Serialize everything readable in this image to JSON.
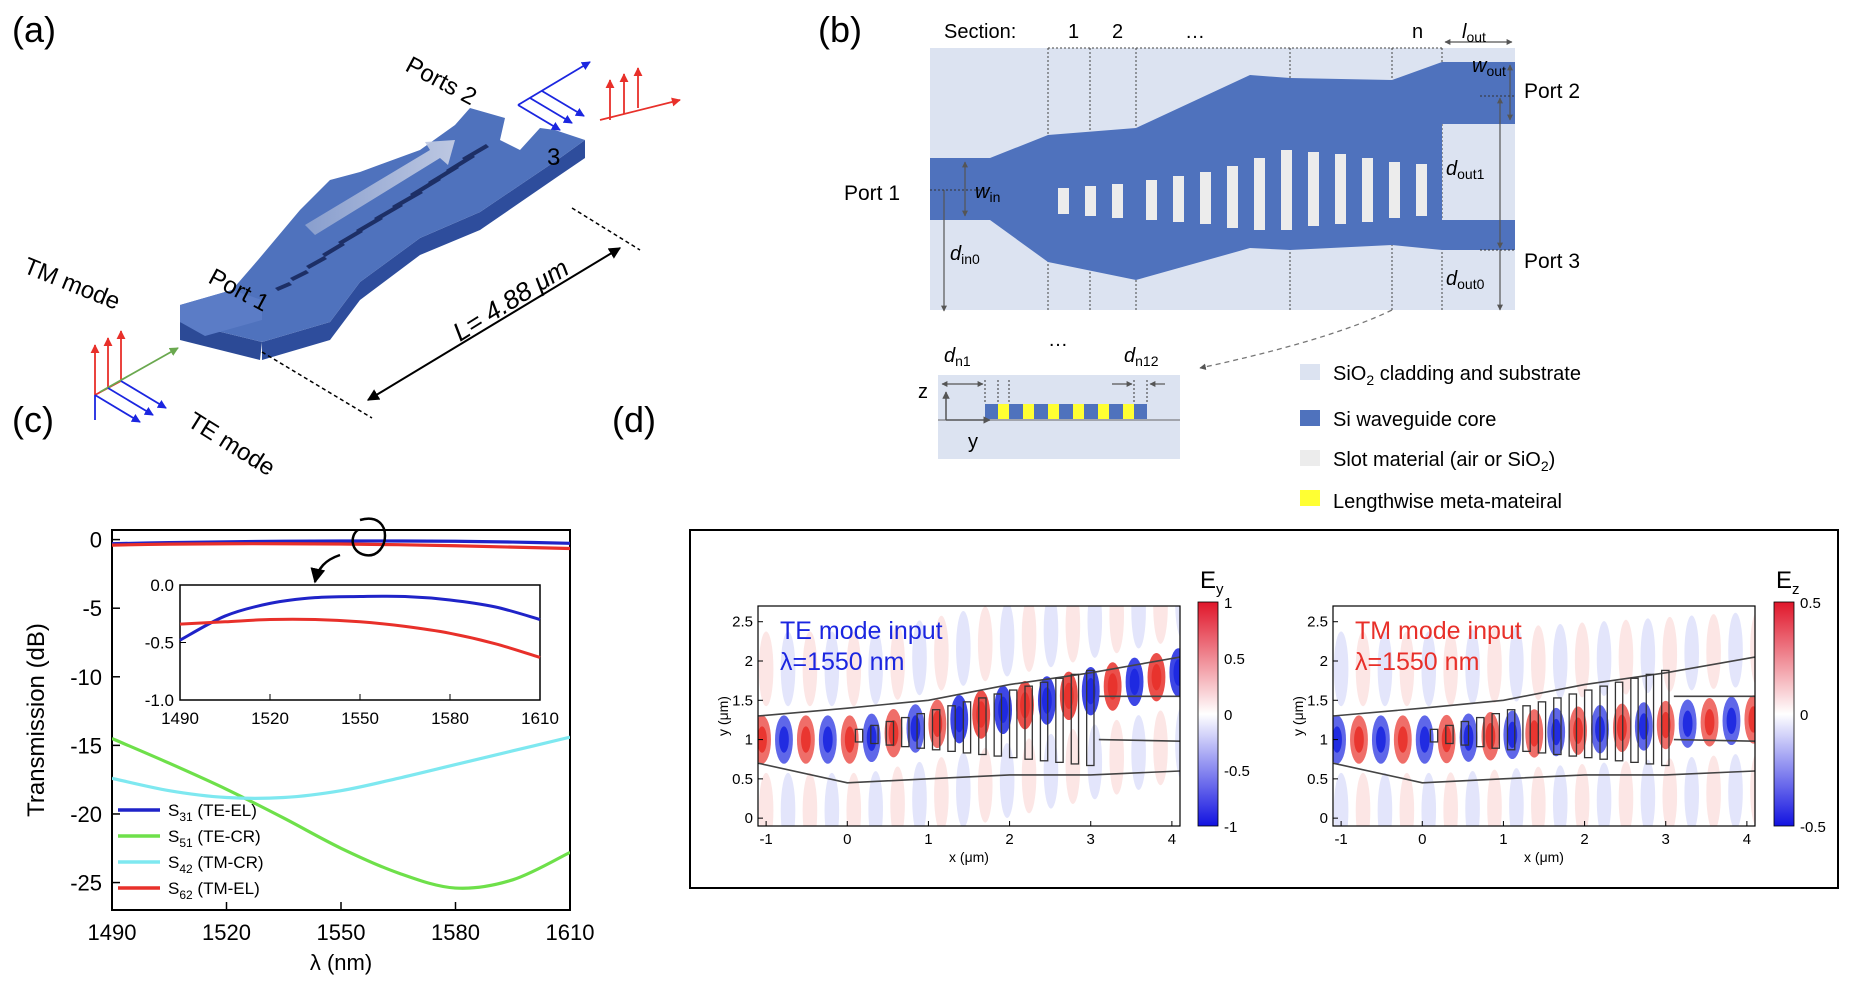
{
  "panel_labels": {
    "a": "(a)",
    "b": "(b)",
    "c": "(c)",
    "d": "(d)"
  },
  "panel_a": {
    "ports2": "Ports 2",
    "port3": "3",
    "port1": "Port 1",
    "length": "L= 4.88 μm",
    "tm_mode": "TM mode",
    "te_mode": "TE mode"
  },
  "panel_b": {
    "section": "Section:",
    "sec1": "1",
    "sec2": "2",
    "ellipsis": "…",
    "secn": "n",
    "l_out": "l",
    "l_out_sub": "out",
    "w_out": "w",
    "w_out_sub": "out",
    "port1": "Port 1",
    "port2": "Port 2",
    "port3": "Port 3",
    "w_in": "w",
    "w_in_sub": "in",
    "d_in0": "d",
    "d_in0_sub": "in0",
    "d_out1": "d",
    "d_out1_sub": "out1",
    "d_out0": "d",
    "d_out0_sub": "out0",
    "inset_ellipsis": "…",
    "d_n1": "d",
    "d_n1_sub": "n1",
    "d_n12": "d",
    "d_n12_sub": "n12",
    "axis_z": "z",
    "axis_y": "y",
    "legend": [
      {
        "pre": "SiO",
        "sub": "2",
        "post": " cladding and substrate",
        "color": "#dce3f1"
      },
      {
        "pre": "Si waveguide core",
        "sub": "",
        "post": "",
        "color": "#4f72bd"
      },
      {
        "pre": "Slot material (air or SiO",
        "sub": "2",
        "post": ")",
        "color": "#ececec"
      },
      {
        "pre": "Lengthwise meta-mateiral",
        "sub": "",
        "post": "",
        "color": "#ffff33"
      }
    ]
  },
  "chart_data": [
    {
      "type": "line",
      "xlabel": "λ (nm)",
      "ylabel": "Transmission (dB)",
      "xlim": [
        1490,
        1610
      ],
      "ylim": [
        -27,
        0.7
      ],
      "xticks": [
        1490,
        1520,
        1550,
        1580,
        1610
      ],
      "yticks": [
        0,
        -5,
        -10,
        -15,
        -20,
        -25
      ],
      "legend_position": "bottom-left",
      "x": [
        1490,
        1505,
        1520,
        1535,
        1550,
        1565,
        1580,
        1595,
        1610
      ],
      "series": [
        {
          "name": "S",
          "sub": "31",
          "suffix": " (TE-EL)",
          "color": "#1f23c8",
          "values": [
            -0.3,
            -0.22,
            -0.16,
            -0.12,
            -0.1,
            -0.1,
            -0.12,
            -0.18,
            -0.27
          ]
        },
        {
          "name": "S",
          "sub": "51",
          "suffix": " (TE-CR)",
          "color": "#6ee04a",
          "values": [
            -14.5,
            -16.3,
            -18.2,
            -20.3,
            -22.5,
            -24.3,
            -25.4,
            -24.8,
            -22.8
          ]
        },
        {
          "name": "S",
          "sub": "42",
          "suffix": " (TM-CR)",
          "color": "#7ee8f0",
          "values": [
            -17.4,
            -18.3,
            -18.8,
            -18.8,
            -18.3,
            -17.4,
            -16.4,
            -15.4,
            -14.4
          ]
        },
        {
          "name": "S",
          "sub": "62",
          "suffix": " (TM-EL)",
          "color": "#e8302a",
          "values": [
            -0.4,
            -0.33,
            -0.3,
            -0.3,
            -0.32,
            -0.37,
            -0.45,
            -0.55,
            -0.65
          ]
        }
      ],
      "inset": {
        "xlim": [
          1490,
          1610
        ],
        "ylim": [
          -1.0,
          0.0
        ],
        "xticks": [
          1490,
          1520,
          1550,
          1580,
          1610
        ],
        "yticks": [
          "0.0",
          "-0.5",
          "-1.0"
        ],
        "series": [
          {
            "color": "#1f23c8",
            "values": [
              -0.48,
              -0.27,
              -0.16,
              -0.11,
              -0.1,
              -0.1,
              -0.13,
              -0.19,
              -0.3
            ]
          },
          {
            "color": "#e8302a",
            "values": [
              -0.34,
              -0.32,
              -0.3,
              -0.3,
              -0.32,
              -0.36,
              -0.42,
              -0.51,
              -0.63
            ]
          }
        ]
      }
    },
    {
      "type": "heatmap",
      "xlabel": "x (μm)",
      "ylabel": "y (μm)",
      "xlim": [
        -1.1,
        4.1
      ],
      "ylim": [
        -0.1,
        2.7
      ],
      "xticks": [
        -1,
        0,
        1,
        2,
        3,
        4
      ],
      "yticks": [
        "0",
        "0.5",
        "1",
        "1.5",
        "2",
        "2.5"
      ],
      "colorbar_title": "E",
      "colorbar_sub": "y",
      "colorbar_ticks": [
        "1",
        "0.5",
        "0",
        "-0.5",
        "-1"
      ],
      "annotation_line1": "TE mode input",
      "annotation_line2": "λ=1550 nm",
      "annotation_color": "#1b26e0"
    },
    {
      "type": "heatmap",
      "xlabel": "x (μm)",
      "ylabel": "y (μm)",
      "xlim": [
        -1.1,
        4.1
      ],
      "ylim": [
        -0.1,
        2.7
      ],
      "xticks": [
        -1,
        0,
        1,
        2,
        3,
        4
      ],
      "yticks": [
        "0",
        "0.5",
        "1",
        "1.5",
        "2",
        "2.5"
      ],
      "colorbar_title": "E",
      "colorbar_sub": "z",
      "colorbar_ticks": [
        "0.5",
        "0",
        "-0.5"
      ],
      "annotation_line1": "TM mode input",
      "annotation_line2": "λ=1550 nm",
      "annotation_color": "#e8302a"
    }
  ]
}
